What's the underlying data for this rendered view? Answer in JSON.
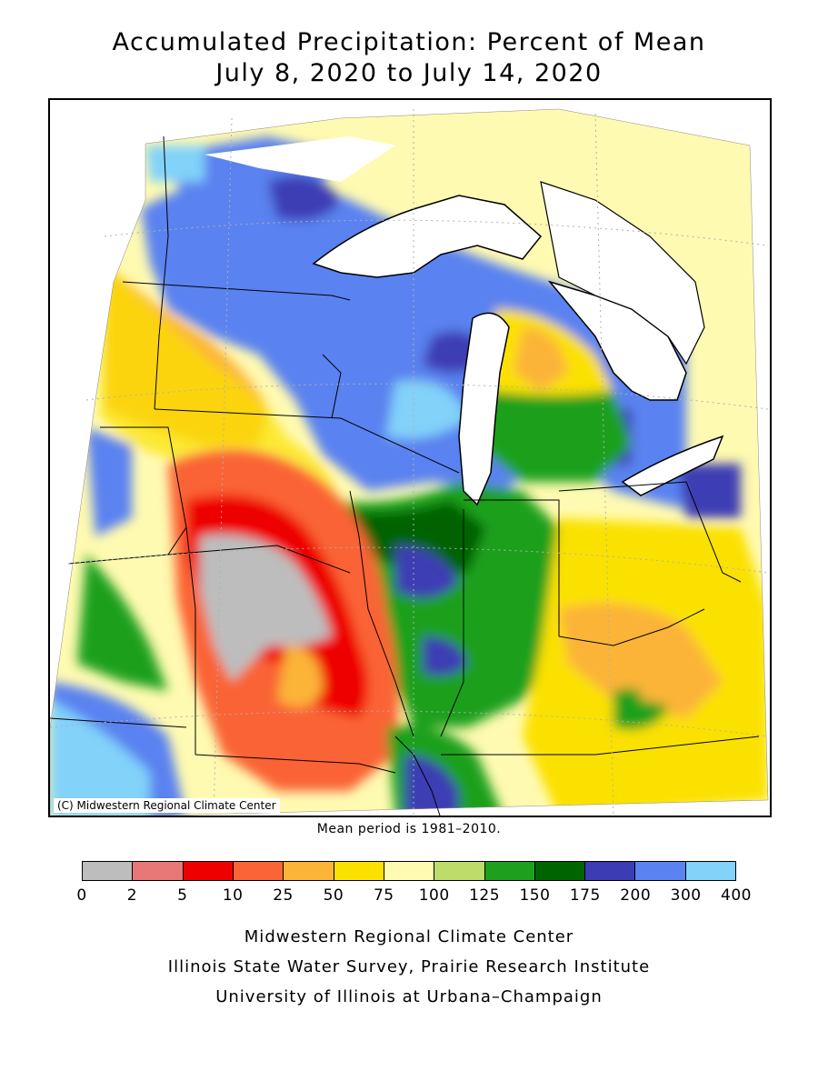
{
  "title": {
    "line1": "Accumulated Precipitation: Percent of Mean",
    "line2": "July 8, 2020 to July 14, 2020"
  },
  "map": {
    "credit": "(C) Midwestern Regional Climate Center",
    "mean_note": "Mean period is 1981–2010."
  },
  "legend": {
    "colors": [
      "#bdbdbd",
      "#e87878",
      "#ee0000",
      "#fa6436",
      "#fbb437",
      "#fbe100",
      "#fffab1",
      "#bddc6a",
      "#1ea01e",
      "#006400",
      "#3c3cb4",
      "#5a82f0",
      "#82d2fa"
    ],
    "tick_labels": [
      "0",
      "2",
      "5",
      "10",
      "25",
      "50",
      "75",
      "100",
      "125",
      "150",
      "175",
      "200",
      "300",
      "400"
    ]
  },
  "footer": {
    "line1": "Midwestern Regional Climate Center",
    "line2": "Illinois State Water Survey, Prairie Research Institute",
    "line3": "University of Illinois at Urbana–Champaign"
  }
}
